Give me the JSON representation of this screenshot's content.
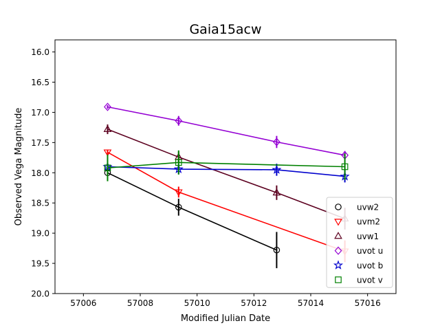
{
  "chart_data": {
    "type": "line",
    "title": "Gaia15acw",
    "xlabel": "Modified Julian Date",
    "ylabel": "Observed Vega Magnitude",
    "xlim": [
      57005,
      57017
    ],
    "ylim": [
      20.0,
      15.8
    ],
    "y_inverted": true,
    "xticks": [
      57006,
      57008,
      57010,
      57012,
      57014,
      57016
    ],
    "xtick_labels": [
      "57006",
      "57008",
      "57010",
      "57012",
      "57014",
      "57016"
    ],
    "yticks": [
      16.0,
      16.5,
      17.0,
      17.5,
      18.0,
      18.5,
      19.0,
      19.5,
      20.0
    ],
    "ytick_labels": [
      "16.0",
      "16.5",
      "17.0",
      "17.5",
      "18.0",
      "18.5",
      "19.0",
      "19.5",
      "20.0"
    ],
    "grid": false,
    "legend_position": "lower-right",
    "series": [
      {
        "name": "uvw2",
        "color": "#000000",
        "marker": "circle",
        "x": [
          57006.85,
          57009.35,
          57012.8
        ],
        "y": [
          18.0,
          18.57,
          19.28
        ],
        "err": [
          0.06,
          0.14,
          0.3
        ]
      },
      {
        "name": "uvm2",
        "color": "#ff0000",
        "marker": "triangle-down",
        "x": [
          57006.85,
          57009.35,
          57015.2
        ],
        "y": [
          17.66,
          18.32,
          19.3
        ],
        "err": [
          0.04,
          0.09,
          0.18
        ]
      },
      {
        "name": "uvw1",
        "color": "#5c001f",
        "marker": "triangle-up",
        "x": [
          57006.85,
          57009.35,
          57012.8,
          57015.2
        ],
        "y": [
          17.28,
          17.74,
          18.33,
          18.76
        ],
        "err": [
          0.08,
          0.09,
          0.12,
          0.18
        ]
      },
      {
        "name": "uvot u",
        "color": "#9400d3",
        "marker": "diamond",
        "x": [
          57006.85,
          57009.35,
          57012.8,
          57015.2
        ],
        "y": [
          16.91,
          17.14,
          17.49,
          17.71
        ],
        "err": [
          0.03,
          0.08,
          0.1,
          0.07
        ]
      },
      {
        "name": "uvot b",
        "color": "#0000cd",
        "marker": "star",
        "x": [
          57006.85,
          57009.35,
          57012.8,
          57015.2
        ],
        "y": [
          17.9,
          17.94,
          17.95,
          18.06
        ],
        "err": [
          0.06,
          0.08,
          0.1,
          0.1
        ]
      },
      {
        "name": "uvot v",
        "color": "#008000",
        "marker": "square",
        "x": [
          57006.85,
          57009.35,
          57015.2
        ],
        "y": [
          17.92,
          17.83,
          17.9
        ],
        "err": [
          0.22,
          0.2,
          0.22
        ]
      }
    ]
  }
}
